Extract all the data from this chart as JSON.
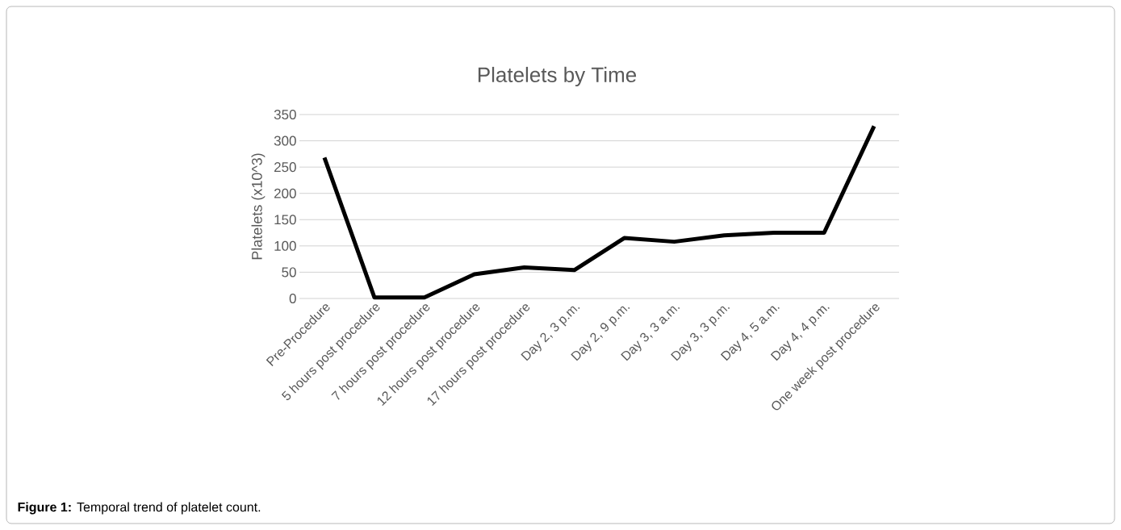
{
  "chart_data": {
    "type": "line",
    "title": "Platelets by Time",
    "ylabel": "Platelets (x10^3)",
    "categories": [
      "Pre-Procedure",
      "5 hours post procedure",
      "7 hours post procedure",
      "12 hours post procedure",
      "17 hours post procedure",
      "Day 2, 3 p.m.",
      "Day 2, 9 p.m.",
      "Day 3, 3 a.m.",
      "Day 3, 3 p.m.",
      "Day 4, 5 a.m.",
      "Day 4, 4 p.m.",
      "One week post procedure"
    ],
    "values": [
      268,
      2,
      2,
      46,
      59,
      54,
      115,
      108,
      120,
      125,
      125,
      328
    ],
    "color": "#000000",
    "ylim": [
      0,
      350
    ],
    "yticks": [
      0,
      50,
      100,
      150,
      200,
      250,
      300,
      350
    ],
    "grid": "y",
    "annotations": [
      "**Figure 1:** Temporal trend of platelet count."
    ]
  }
}
